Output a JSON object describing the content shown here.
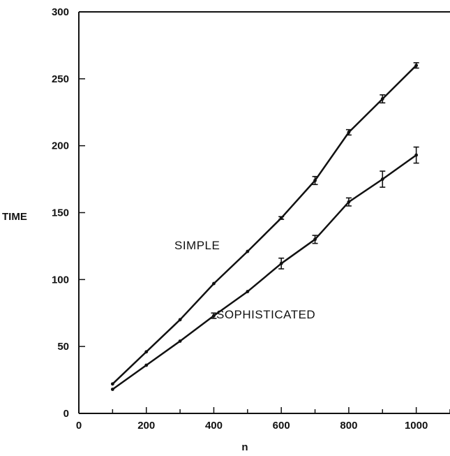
{
  "chart_data": {
    "type": "line",
    "xlabel": "n",
    "ylabel": "TIME",
    "xlim": [
      0,
      1100
    ],
    "ylim": [
      0,
      300
    ],
    "xticks": [
      0,
      200,
      400,
      600,
      800,
      1000
    ],
    "yticks": [
      0,
      50,
      100,
      150,
      200,
      250,
      300
    ],
    "grid": false,
    "line_color": "#111111",
    "series": [
      {
        "name": "SIMPLE",
        "x": [
          100,
          200,
          300,
          400,
          500,
          600,
          700,
          800,
          900,
          1000
        ],
        "values": [
          22,
          46,
          70,
          97,
          121,
          146,
          174,
          210,
          235,
          260
        ],
        "error": [
          0,
          0,
          0,
          0,
          0,
          1,
          3,
          2,
          3,
          2
        ]
      },
      {
        "name": "SOPHISTICATED",
        "x": [
          100,
          200,
          300,
          400,
          500,
          600,
          700,
          800,
          900,
          1000
        ],
        "values": [
          18,
          36,
          54,
          73,
          91,
          112,
          130,
          158,
          175,
          193
        ],
        "error": [
          0,
          0,
          0,
          2,
          0,
          4,
          3,
          3,
          6,
          6
        ]
      }
    ]
  }
}
